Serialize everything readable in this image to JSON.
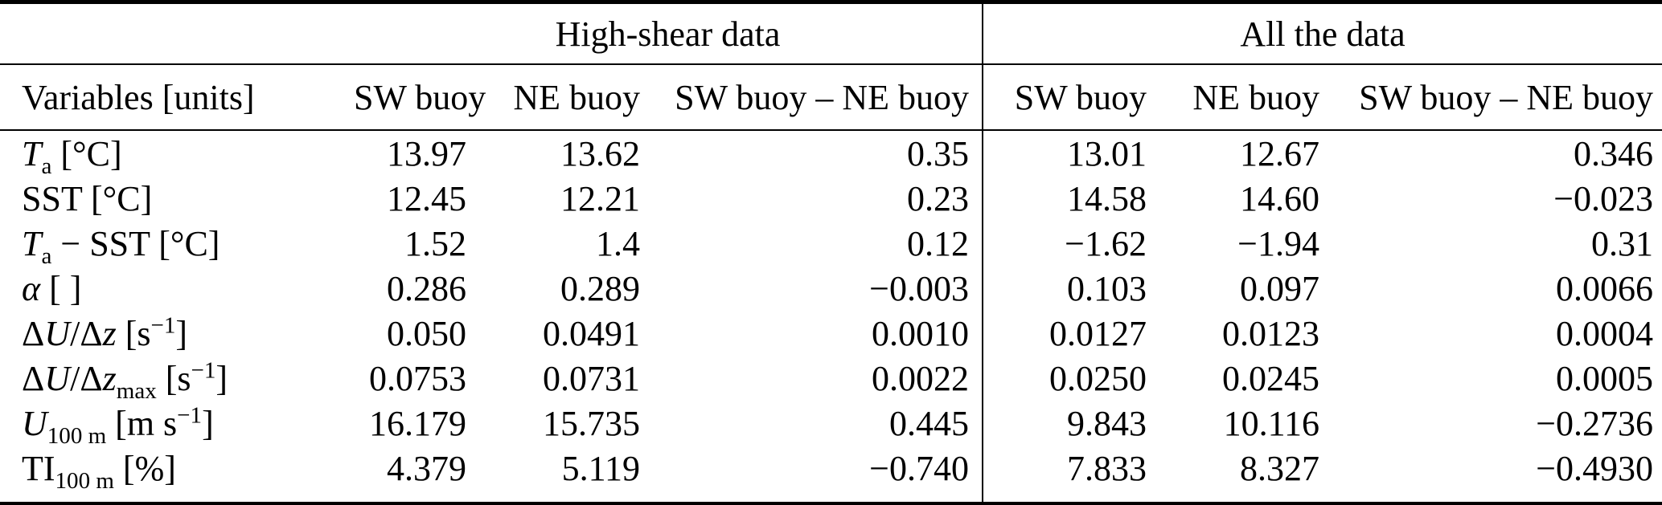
{
  "table": {
    "group_headers": {
      "left": "High-shear data",
      "right": "All the data"
    },
    "columns": {
      "variables": "Variables [units]",
      "hs_sw": "SW buoy",
      "hs_ne": "NE buoy",
      "hs_diff": "SW buoy – NE buoy",
      "all_sw": "SW buoy",
      "all_ne": "NE buoy",
      "all_diff": "SW buoy – NE buoy"
    },
    "rows": [
      {
        "label": [
          {
            "text": "T",
            "style": "italic"
          },
          {
            "text": "a",
            "style": "sub"
          },
          {
            "text": " [°C]",
            "style": "normal"
          }
        ],
        "high_shear": {
          "sw": "13.97",
          "ne": "13.62",
          "diff": "0.35"
        },
        "all_data": {
          "sw": "13.01",
          "ne": "12.67",
          "diff": "0.346"
        }
      },
      {
        "label": [
          {
            "text": "SST [°C]",
            "style": "normal"
          }
        ],
        "high_shear": {
          "sw": "12.45",
          "ne": "12.21",
          "diff": "0.23"
        },
        "all_data": {
          "sw": "14.58",
          "ne": "14.60",
          "diff": "−0.023"
        }
      },
      {
        "label": [
          {
            "text": "T",
            "style": "italic"
          },
          {
            "text": "a",
            "style": "sub"
          },
          {
            "text": " − SST [°C]",
            "style": "normal"
          }
        ],
        "high_shear": {
          "sw": "1.52",
          "ne": "1.4",
          "diff": "0.12"
        },
        "all_data": {
          "sw": "−1.62",
          "ne": "−1.94",
          "diff": "0.31"
        }
      },
      {
        "label": [
          {
            "text": "α",
            "style": "italic"
          },
          {
            "text": " [ ]",
            "style": "normal"
          }
        ],
        "high_shear": {
          "sw": "0.286",
          "ne": "0.289",
          "diff": "−0.003"
        },
        "all_data": {
          "sw": "0.103",
          "ne": "0.097",
          "diff": "0.0066"
        }
      },
      {
        "label": [
          {
            "text": "Δ",
            "style": "normal"
          },
          {
            "text": "U",
            "style": "italic"
          },
          {
            "text": "/",
            "style": "normal"
          },
          {
            "text": "Δ",
            "style": "normal"
          },
          {
            "text": "z",
            "style": "italic"
          },
          {
            "text": " [s",
            "style": "normal"
          },
          {
            "text": "−1",
            "style": "sup"
          },
          {
            "text": "]",
            "style": "normal"
          }
        ],
        "high_shear": {
          "sw": "0.050",
          "ne": "0.0491",
          "diff": "0.0010"
        },
        "all_data": {
          "sw": "0.0127",
          "ne": "0.0123",
          "diff": "0.0004"
        }
      },
      {
        "label": [
          {
            "text": "Δ",
            "style": "normal"
          },
          {
            "text": "U",
            "style": "italic"
          },
          {
            "text": "/",
            "style": "normal"
          },
          {
            "text": "Δ",
            "style": "normal"
          },
          {
            "text": "z",
            "style": "italic"
          },
          {
            "text": "max",
            "style": "sub"
          },
          {
            "text": " [s",
            "style": "normal"
          },
          {
            "text": "−1",
            "style": "sup"
          },
          {
            "text": "]",
            "style": "normal"
          }
        ],
        "high_shear": {
          "sw": "0.0753",
          "ne": "0.0731",
          "diff": "0.0022"
        },
        "all_data": {
          "sw": "0.0250",
          "ne": "0.0245",
          "diff": "0.0005"
        }
      },
      {
        "label": [
          {
            "text": "U",
            "style": "italic"
          },
          {
            "text": "100 m",
            "style": "sub"
          },
          {
            "text": " [m s",
            "style": "normal"
          },
          {
            "text": "−1",
            "style": "sup"
          },
          {
            "text": "]",
            "style": "normal"
          }
        ],
        "high_shear": {
          "sw": "16.179",
          "ne": "15.735",
          "diff": "0.445"
        },
        "all_data": {
          "sw": "9.843",
          "ne": "10.116",
          "diff": "−0.2736"
        }
      },
      {
        "label": [
          {
            "text": "TI",
            "style": "normal"
          },
          {
            "text": "100 m",
            "style": "sub"
          },
          {
            "text": " [%]",
            "style": "normal"
          }
        ],
        "high_shear": {
          "sw": "4.379",
          "ne": "5.119",
          "diff": "−0.740"
        },
        "all_data": {
          "sw": "7.833",
          "ne": "8.327",
          "diff": "−0.4930"
        }
      }
    ]
  }
}
